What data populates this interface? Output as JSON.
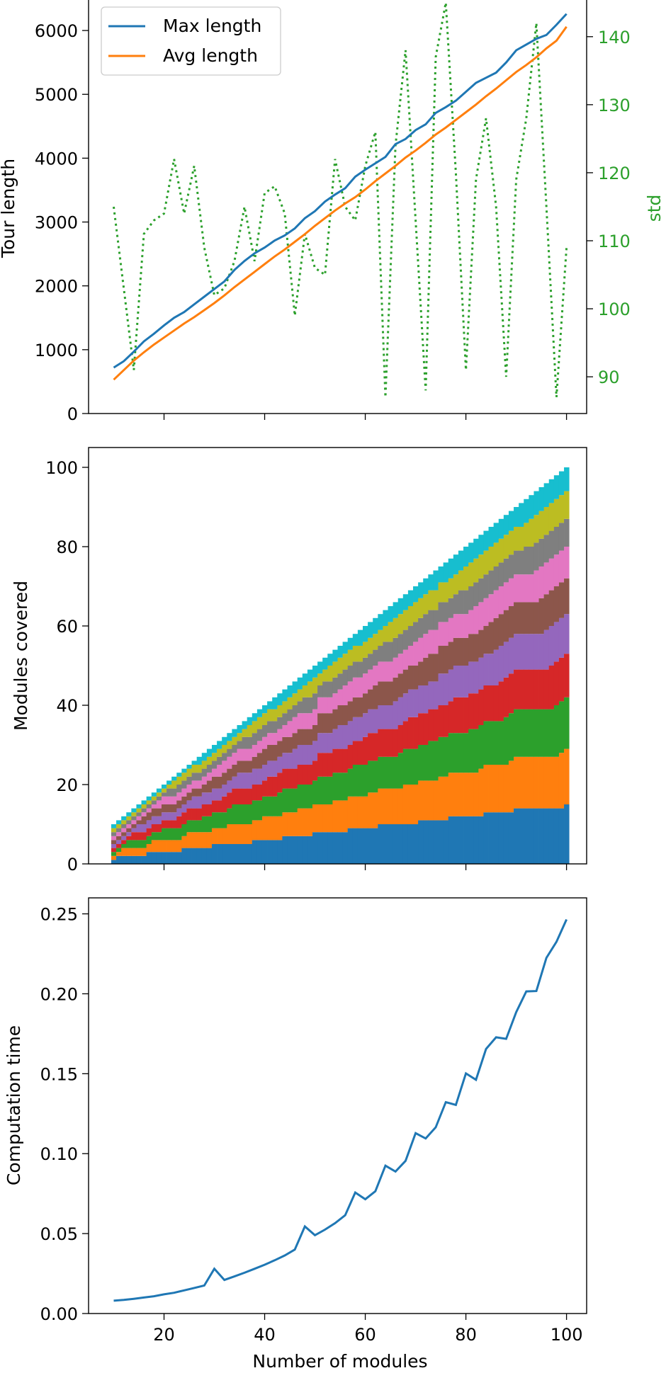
{
  "colors": {
    "tab10": [
      "#1f77b4",
      "#ff7f0e",
      "#2ca02c",
      "#d62728",
      "#9467bd",
      "#8c564b",
      "#e377c2",
      "#7f7f7f",
      "#bcbd22",
      "#17becf"
    ],
    "std": "#2ca02c"
  },
  "chart_data": [
    {
      "type": "line",
      "xlim": [
        5,
        104
      ],
      "ylim": [
        0,
        6500
      ],
      "yticks": [
        0,
        1000,
        2000,
        3000,
        4000,
        5000,
        6000
      ],
      "xticks": [
        20,
        40,
        60,
        80,
        100
      ],
      "ylabel": "Tour length",
      "legend": {
        "placement": "top-left",
        "entries": [
          "Max length",
          "Avg length"
        ]
      },
      "x": [
        10,
        12,
        14,
        16,
        18,
        20,
        22,
        24,
        26,
        28,
        30,
        32,
        34,
        36,
        38,
        40,
        42,
        44,
        46,
        48,
        50,
        52,
        54,
        56,
        58,
        60,
        62,
        64,
        66,
        68,
        70,
        72,
        74,
        76,
        78,
        80,
        82,
        84,
        86,
        88,
        90,
        92,
        94,
        96,
        98,
        100
      ],
      "series": [
        {
          "name": "Max length",
          "color": "#1f77b4",
          "values": [
            720,
            820,
            970,
            1130,
            1250,
            1380,
            1500,
            1590,
            1710,
            1830,
            1950,
            2070,
            2250,
            2390,
            2510,
            2600,
            2710,
            2790,
            2900,
            3060,
            3170,
            3320,
            3430,
            3530,
            3710,
            3820,
            3920,
            4020,
            4220,
            4300,
            4440,
            4530,
            4710,
            4800,
            4900,
            5040,
            5180,
            5260,
            5340,
            5500,
            5690,
            5780,
            5870,
            5930,
            6090,
            6260
          ]
        },
        {
          "name": "Avg length",
          "color": "#ff7f0e",
          "values": [
            530,
            680,
            830,
            960,
            1080,
            1190,
            1300,
            1410,
            1510,
            1620,
            1730,
            1850,
            1980,
            2100,
            2220,
            2340,
            2460,
            2570,
            2690,
            2810,
            2940,
            3060,
            3180,
            3290,
            3390,
            3510,
            3640,
            3760,
            3880,
            4010,
            4120,
            4240,
            4370,
            4480,
            4600,
            4720,
            4840,
            4970,
            5090,
            5220,
            5350,
            5460,
            5580,
            5720,
            5840,
            6060
          ]
        }
      ],
      "secondary": {
        "label": "std",
        "ylim": [
          84.6,
          145.6
        ],
        "yticks": [
          90,
          100,
          110,
          120,
          130,
          140
        ],
        "style": "dotted",
        "values": [
          115,
          103,
          91,
          111,
          113,
          114,
          122,
          114,
          121,
          109,
          102,
          103,
          107,
          115,
          107,
          117,
          118,
          114,
          99,
          111,
          106,
          105,
          122,
          115,
          113,
          121,
          126,
          87,
          124,
          138,
          113,
          88,
          137,
          145,
          120,
          91,
          119,
          128,
          115,
          90,
          119,
          128,
          142,
          115,
          87,
          109
        ]
      }
    },
    {
      "type": "area",
      "style": "stacked-step",
      "xlim": [
        5,
        104
      ],
      "ylim": [
        0,
        105
      ],
      "yticks": [
        0,
        20,
        40,
        60,
        80,
        100
      ],
      "xticks": [
        20,
        40,
        60,
        80,
        100
      ],
      "ylabel": "Modules covered",
      "x_range": [
        10,
        100
      ],
      "layer_count": 10,
      "layer_shares": [
        0.15,
        0.14,
        0.13,
        0.11,
        0.1,
        0.09,
        0.08,
        0.07,
        0.07,
        0.06
      ],
      "total": "equals number of modules"
    },
    {
      "type": "line",
      "xlim": [
        5,
        104
      ],
      "ylim": [
        0,
        0.26
      ],
      "yticks": [
        "0.00",
        "0.05",
        "0.10",
        "0.15",
        "0.20",
        "0.25"
      ],
      "xticks": [
        20,
        40,
        60,
        80,
        100
      ],
      "xlabel": "Number of modules",
      "ylabel": "Computation time",
      "x": [
        10,
        12,
        14,
        16,
        18,
        20,
        22,
        24,
        26,
        28,
        30,
        32,
        34,
        36,
        38,
        40,
        42,
        44,
        46,
        48,
        50,
        52,
        54,
        56,
        58,
        60,
        62,
        64,
        66,
        68,
        70,
        72,
        74,
        76,
        78,
        80,
        82,
        84,
        86,
        88,
        90,
        92,
        94,
        96,
        98,
        100
      ],
      "series": [
        {
          "color": "#1f77b4",
          "values": [
            0.008,
            0.0085,
            0.0092,
            0.01,
            0.0108,
            0.012,
            0.013,
            0.0145,
            0.016,
            0.0175,
            0.028,
            0.021,
            0.0232,
            0.0255,
            0.028,
            0.0305,
            0.0333,
            0.0363,
            0.04,
            0.0545,
            0.049,
            0.0525,
            0.0565,
            0.0615,
            0.0757,
            0.0715,
            0.0765,
            0.0925,
            0.0888,
            0.0955,
            0.1128,
            0.1095,
            0.1165,
            0.1322,
            0.1305,
            0.1502,
            0.1462,
            0.1655,
            0.1728,
            0.1718,
            0.1885,
            0.2015,
            0.2017,
            0.2225,
            0.2325,
            0.2465
          ]
        }
      ]
    }
  ]
}
